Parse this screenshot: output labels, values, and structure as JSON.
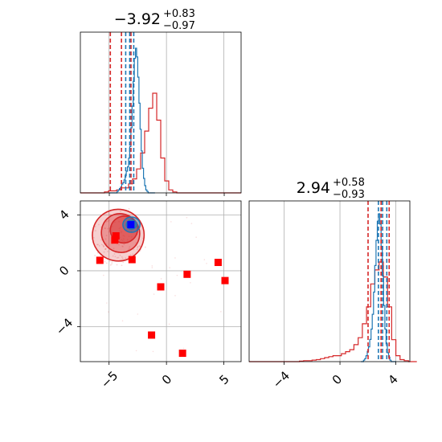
{
  "colors": {
    "primary": "#d62728",
    "secondary": "#1f77b4",
    "marker_red": "#ff0000",
    "marker_blue": "#0000ff"
  },
  "chart_data": [
    {
      "type": "histogram",
      "panel": "top-left",
      "title_value": "−3.92",
      "title_plus": "+0.83",
      "title_minus": "−0.97",
      "xlim": [
        -7.5,
        6.5
      ],
      "grid": true,
      "series": [
        {
          "color": "#d62728",
          "bin_start": -7.5,
          "bin_width": 0.35,
          "heights": [
            0,
            0,
            0,
            0,
            0,
            0,
            0.01,
            0.02,
            0.02,
            0.03,
            0.05,
            0.05,
            0.09,
            0.14,
            0.24,
            0.4,
            0.62,
            0.85,
            1.0,
            0.73,
            0.35,
            0.12,
            0.03,
            0.01,
            0,
            0,
            0,
            0,
            0,
            0,
            0,
            0,
            0,
            0,
            0,
            0,
            0,
            0,
            0,
            0
          ]
        },
        {
          "color": "#1f77b4",
          "bin_start": -5.0,
          "bin_width": 0.1,
          "heights": [
            0,
            0,
            0,
            0,
            0,
            0,
            0,
            0.01,
            0.02,
            0.03,
            0.04,
            0.06,
            0.07,
            0.09,
            0.12,
            0.15,
            0.18,
            0.24,
            0.32,
            0.45,
            0.6,
            0.77,
            0.93,
            1.0,
            0.94,
            0.8,
            0.62,
            0.44,
            0.29,
            0.17,
            0.1,
            0.05,
            0.02,
            0.01,
            0,
            0,
            0,
            0,
            0,
            0
          ]
        }
      ],
      "quantile_lines": [
        {
          "color": "#d62728",
          "x": -4.89
        },
        {
          "color": "#d62728",
          "x": -3.92
        },
        {
          "color": "#d62728",
          "x": -3.09
        },
        {
          "color": "#1f77b4",
          "x": -3.55
        },
        {
          "color": "#1f77b4",
          "x": -3.2
        },
        {
          "color": "#1f77b4",
          "x": -2.85
        }
      ]
    },
    {
      "type": "scatter",
      "panel": "bottom-left",
      "xlim": [
        -7.5,
        6.5
      ],
      "ylim": [
        -6.5,
        5.0
      ],
      "xticks": [
        "−5",
        "0",
        "5"
      ],
      "xtick_values": [
        -5,
        0,
        5
      ],
      "yticks": [
        "4",
        "0",
        "−4"
      ],
      "ytick_values": [
        4,
        0,
        -4
      ],
      "grid": true,
      "red_points": [
        {
          "x": -5.8,
          "y": 0.75
        },
        {
          "x": -4.5,
          "y": 2.2
        },
        {
          "x": -3.0,
          "y": 0.8
        },
        {
          "x": -0.5,
          "y": -1.15
        },
        {
          "x": 1.8,
          "y": -0.25
        },
        {
          "x": 4.5,
          "y": 0.6
        },
        {
          "x": 5.1,
          "y": -0.7
        },
        {
          "x": -1.3,
          "y": -4.6
        },
        {
          "x": 1.4,
          "y": -5.9
        },
        {
          "x": -4.4,
          "y": 2.5
        }
      ],
      "blue_point": {
        "x": -3.1,
        "y": 3.3
      },
      "contours": [
        {
          "cx": -4.2,
          "cy": 2.55,
          "rx": 2.25,
          "ry": 1.85,
          "rot": -34,
          "opacity": 0.22
        },
        {
          "cx": -4.0,
          "cy": 2.7,
          "rx": 1.65,
          "ry": 1.4,
          "rot": -34,
          "opacity": 0.35
        },
        {
          "cx": -3.7,
          "cy": 2.95,
          "rx": 1.2,
          "ry": 0.95,
          "rot": -30,
          "opacity": 0.5
        }
      ],
      "blue_contours": [
        {
          "cx": -3.05,
          "cy": 3.3,
          "rx": 0.75,
          "ry": 0.55,
          "rot": 0,
          "opacity": 0.45
        },
        {
          "cx": -3.05,
          "cy": 3.3,
          "rx": 0.45,
          "ry": 0.32,
          "rot": 0,
          "opacity": 0.7
        }
      ]
    },
    {
      "type": "histogram",
      "panel": "bottom-right",
      "title_value": "2.94",
      "title_plus": "+0.58",
      "title_minus": "−0.93",
      "xlim": [
        -6.5,
        5.0
      ],
      "xticks": [
        "−4",
        "0",
        "4"
      ],
      "xtick_values": [
        -4,
        0,
        4
      ],
      "grid": true,
      "series": [
        {
          "color": "#d62728",
          "bin_start": -6.5,
          "bin_width": 0.3,
          "heights": [
            0,
            0,
            0,
            0,
            0,
            0,
            0,
            0,
            0,
            0,
            0,
            0,
            0.005,
            0.01,
            0.01,
            0.015,
            0.02,
            0.03,
            0.04,
            0.05,
            0.06,
            0.06,
            0.08,
            0.1,
            0.12,
            0.17,
            0.24,
            0.38,
            0.55,
            0.78,
            0.92,
            1.0,
            0.85,
            0.55,
            0.22,
            0.06,
            0.02,
            0.01,
            0,
            0
          ]
        },
        {
          "color": "#1f77b4",
          "bin_start": 1.5,
          "bin_width": 0.09,
          "heights": [
            0,
            0,
            0.01,
            0.02,
            0.04,
            0.07,
            0.1,
            0.15,
            0.22,
            0.32,
            0.47,
            0.65,
            0.82,
            0.95,
            1.0,
            0.93,
            0.78,
            0.58,
            0.38,
            0.22,
            0.12,
            0.06,
            0.03,
            0.01,
            0,
            0,
            0,
            0
          ]
        }
      ],
      "quantile_lines": [
        {
          "color": "#d62728",
          "x": 2.01
        },
        {
          "color": "#d62728",
          "x": 2.94
        },
        {
          "color": "#d62728",
          "x": 3.52
        },
        {
          "color": "#1f77b4",
          "x": 2.75
        },
        {
          "color": "#1f77b4",
          "x": 3.05
        },
        {
          "color": "#1f77b4",
          "x": 3.35
        }
      ]
    }
  ]
}
